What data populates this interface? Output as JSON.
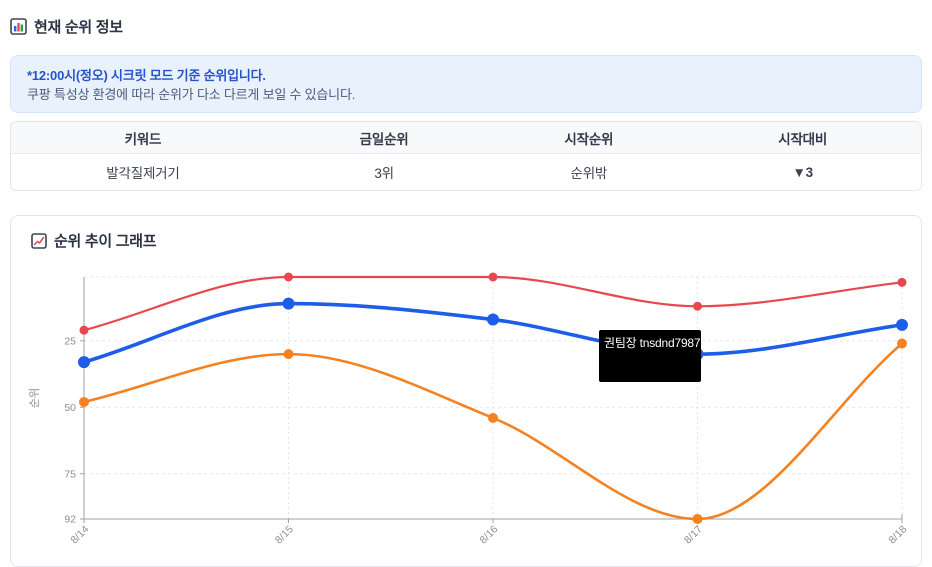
{
  "page": {
    "section1_title": "현재 순위 정보",
    "section2_title": "순위 추이 그래프"
  },
  "notice": {
    "line1": "*12:00시(정오) 시크릿 모드 기준 순위입니다.",
    "line2": "쿠팡 특성상 환경에 따라 순위가 다소 다르게 보일 수 있습니다."
  },
  "table": {
    "headers": [
      "키워드",
      "금일순위",
      "시작순위",
      "시작대비"
    ],
    "row": {
      "keyword": "발각질제거기",
      "today_rank": "3위",
      "start_rank": "순위밖",
      "vs_start": "▼3"
    }
  },
  "tooltip": {
    "label": "권팀장 tnsdnd7987"
  },
  "colors": {
    "accent_blue": "#2553cc",
    "down_red": "#e5383f",
    "muted_gray": "#9aa0a8"
  },
  "chart_data": {
    "type": "line",
    "x": [
      "8/14",
      "8/15",
      "8/16",
      "8/17",
      "8/18"
    ],
    "ylabel": "순위",
    "y_axis_inverted": true,
    "ylim": [
      1,
      92
    ],
    "y_ticks": [
      25,
      50,
      75,
      92
    ],
    "grid": true,
    "legend_position": "none",
    "series": [
      {
        "name": "red-line",
        "color": "#e8474f",
        "values": [
          21,
          1,
          1,
          12,
          3
        ],
        "line_width": 2.2,
        "dot_radius": 4.5
      },
      {
        "name": "orange-line",
        "color": "#f58220",
        "values": [
          48,
          30,
          54,
          92,
          26
        ],
        "line_width": 2.6,
        "dot_radius": 5
      },
      {
        "name": "blue-line",
        "color": "#1d5de8",
        "values": [
          33,
          11,
          17,
          30,
          19
        ],
        "line_width": 3.6,
        "dot_radius": 6
      }
    ]
  }
}
